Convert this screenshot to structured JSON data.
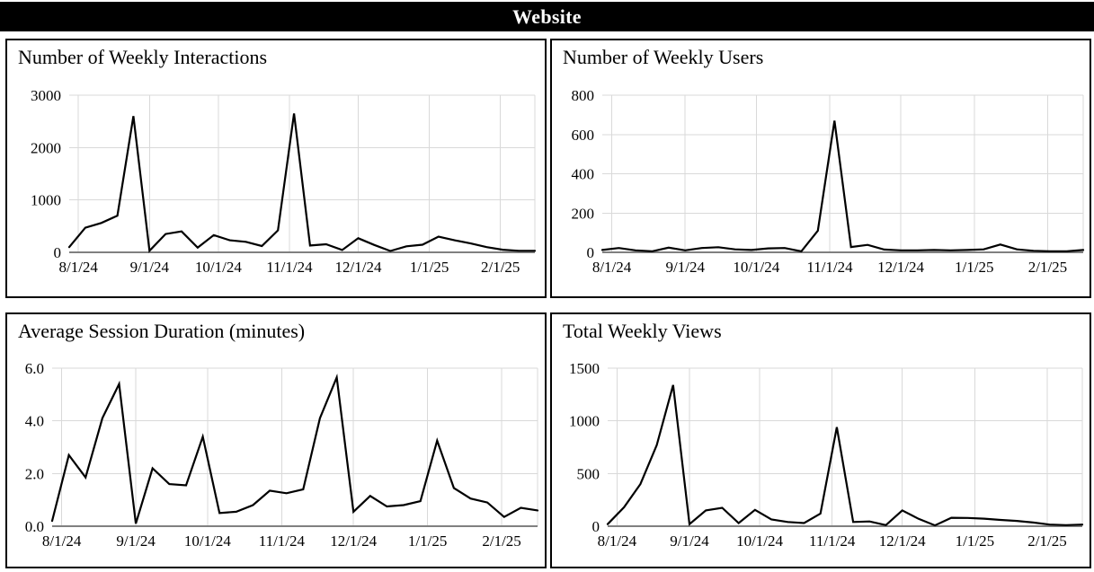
{
  "header": {
    "title": "Website"
  },
  "x_axis": {
    "tick_labels": [
      "8/1/24",
      "9/1/24",
      "10/1/24",
      "11/1/24",
      "12/1/24",
      "1/1/25",
      "2/1/25"
    ],
    "tick_day_offsets": [
      4,
      35,
      65,
      96,
      126,
      157,
      188
    ],
    "total_days": 203,
    "weekly_dates": [
      "7/28/24",
      "8/4/24",
      "8/11/24",
      "8/18/24",
      "8/25/24",
      "9/1/24",
      "9/8/24",
      "9/15/24",
      "9/22/24",
      "9/29/24",
      "10/6/24",
      "10/13/24",
      "10/20/24",
      "10/27/24",
      "11/3/24",
      "11/10/24",
      "11/17/24",
      "11/24/24",
      "12/1/24",
      "12/8/24",
      "12/15/24",
      "12/22/24",
      "12/29/24",
      "1/5/25",
      "1/12/25",
      "1/19/25",
      "1/26/25",
      "2/2/25",
      "2/9/25",
      "2/16/25"
    ]
  },
  "chart_data": [
    {
      "type": "line",
      "title": "Number of Weekly Interactions",
      "ylim": [
        0,
        3000
      ],
      "y_tick_labels": [
        "0",
        "1000",
        "2000",
        "3000"
      ],
      "grid": true,
      "values": [
        100,
        470,
        560,
        700,
        2600,
        30,
        350,
        400,
        90,
        330,
        230,
        200,
        120,
        420,
        2650,
        130,
        155,
        45,
        270,
        140,
        25,
        115,
        145,
        300,
        230,
        170,
        100,
        50,
        30,
        30
      ]
    },
    {
      "type": "line",
      "title": "Number of Weekly Users",
      "ylim": [
        0,
        800
      ],
      "y_tick_labels": [
        "0",
        "200",
        "400",
        "600",
        "800"
      ],
      "grid": true,
      "values": [
        12,
        22,
        10,
        5,
        24,
        10,
        22,
        26,
        15,
        12,
        20,
        22,
        5,
        110,
        670,
        27,
        38,
        14,
        10,
        10,
        12,
        10,
        12,
        15,
        40,
        15,
        8,
        5,
        5,
        12
      ]
    },
    {
      "type": "line",
      "title": "Average Session Duration (minutes)",
      "ylim": [
        0,
        6.0
      ],
      "y_tick_labels": [
        "0.0",
        "2.0",
        "4.0",
        "6.0"
      ],
      "grid": true,
      "values": [
        0.2,
        2.7,
        1.85,
        4.1,
        5.4,
        0.1,
        2.2,
        1.6,
        1.55,
        3.4,
        0.5,
        0.55,
        0.8,
        1.35,
        1.25,
        1.4,
        4.1,
        5.65,
        0.55,
        1.15,
        0.75,
        0.8,
        0.95,
        3.25,
        1.45,
        1.05,
        0.9,
        0.35,
        0.7,
        0.6
      ]
    },
    {
      "type": "line",
      "title": "Total Weekly Views",
      "ylim": [
        0,
        1500
      ],
      "y_tick_labels": [
        "0",
        "500",
        "1000",
        "1500"
      ],
      "grid": true,
      "values": [
        20,
        180,
        400,
        770,
        1340,
        20,
        150,
        175,
        30,
        155,
        65,
        40,
        30,
        120,
        940,
        40,
        45,
        10,
        150,
        70,
        8,
        80,
        78,
        72,
        60,
        50,
        35,
        15,
        10,
        15
      ]
    }
  ],
  "style": {
    "series_color": "#000000",
    "gridline_color": "#d9d9d9",
    "axis_color": "#808080",
    "header_bg": "#000000",
    "header_text": "#ffffff",
    "panel_border": "#000000"
  }
}
